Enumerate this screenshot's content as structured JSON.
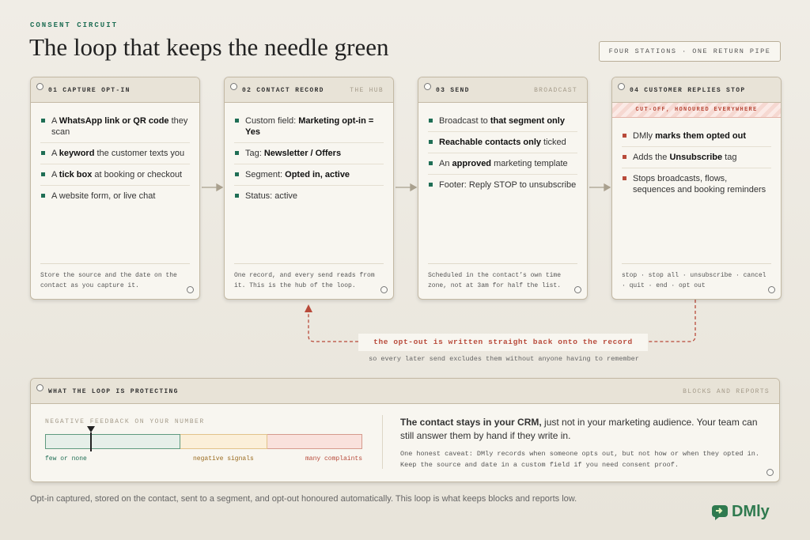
{
  "header": {
    "kicker": "CONSENT CIRCUIT",
    "title": "The loop that keeps the needle green",
    "badge": "FOUR STATIONS · ONE RETURN PIPE"
  },
  "stations": [
    {
      "title": "01 CAPTURE OPT-IN",
      "items": [
        [
          {
            "text": "A "
          },
          {
            "text": "WhatsApp link or QR code",
            "bold": true
          },
          {
            "text": " they scan"
          }
        ],
        [
          {
            "text": "A "
          },
          {
            "text": "keyword",
            "bold": true
          },
          {
            "text": " the customer texts you"
          }
        ],
        [
          {
            "text": "A "
          },
          {
            "text": "tick box",
            "bold": true
          },
          {
            "text": " at booking or checkout"
          }
        ],
        [
          {
            "text": "A website form, or live chat"
          }
        ]
      ],
      "note": "Store the source and the date on the contact as you capture it."
    },
    {
      "title": "02 CONTACT RECORD",
      "tag": "THE HUB",
      "items": [
        [
          {
            "text": "Custom field: "
          },
          {
            "text": "Marketing opt-in = Yes",
            "bold": true
          }
        ],
        [
          {
            "text": "Tag: "
          },
          {
            "text": "Newsletter / Offers",
            "bold": true
          }
        ],
        [
          {
            "text": "Segment: "
          },
          {
            "text": "Opted in, active",
            "bold": true
          }
        ],
        [
          {
            "text": "Status: active"
          }
        ]
      ],
      "note": "One record, and every send reads from it. This is the hub of the loop."
    },
    {
      "title": "03 SEND",
      "tag": "BROADCAST",
      "items": [
        [
          {
            "text": "Broadcast to "
          },
          {
            "text": "that segment only",
            "bold": true
          }
        ],
        [
          {
            "text": "Reachable contacts only",
            "bold": true
          },
          {
            "text": " ticked"
          }
        ],
        [
          {
            "text": "An "
          },
          {
            "text": "approved",
            "bold": true
          },
          {
            "text": " marketing template"
          }
        ],
        [
          {
            "text": "Footer: Reply STOP to unsubscribe"
          }
        ]
      ],
      "note": "Scheduled in the contact’s own time zone, not at 3am for half the list."
    },
    {
      "title": "04 CUSTOMER REPLIES STOP",
      "banner": "CUT-OFF, HONOURED EVERYWHERE",
      "items": [
        [
          {
            "text": "DMly "
          },
          {
            "text": "marks them opted out",
            "bold": true
          }
        ],
        [
          {
            "text": "Adds the "
          },
          {
            "text": "Unsubscribe",
            "bold": true
          },
          {
            "text": " tag"
          }
        ],
        [
          {
            "text": "Stops broadcasts, flows, sequences and booking reminders"
          }
        ]
      ],
      "note": "stop · stop all · unsubscribe · cancel · quit · end · opt out"
    }
  ],
  "return_pipe": {
    "label": "the opt-out is written straight back onto the record",
    "sub": "so every later send excludes them without anyone having to remember"
  },
  "protect": {
    "title": "WHAT THE LOOP IS PROTECTING",
    "tag": "BLOCKS AND REPORTS",
    "gauge_label": "NEGATIVE FEEDBACK ON YOUR NUMBER",
    "zones": [
      "few or none",
      "negative signals",
      "many complaints"
    ],
    "text": [
      {
        "text": "The contact stays in your CRM,",
        "bold": true
      },
      {
        "text": " just not in your marketing audience. Your team can still answer them by hand if they write in."
      }
    ],
    "caveat": "One honest caveat: DMly records when someone opts out, but not how or when they opted in. Keep the source and date in a custom field if you need consent proof."
  },
  "footer": "Opt-in captured, stored on the contact, sent to a segment, and opt-out honoured automatically. This loop is what keeps blocks and reports low.",
  "logo": "DMly"
}
